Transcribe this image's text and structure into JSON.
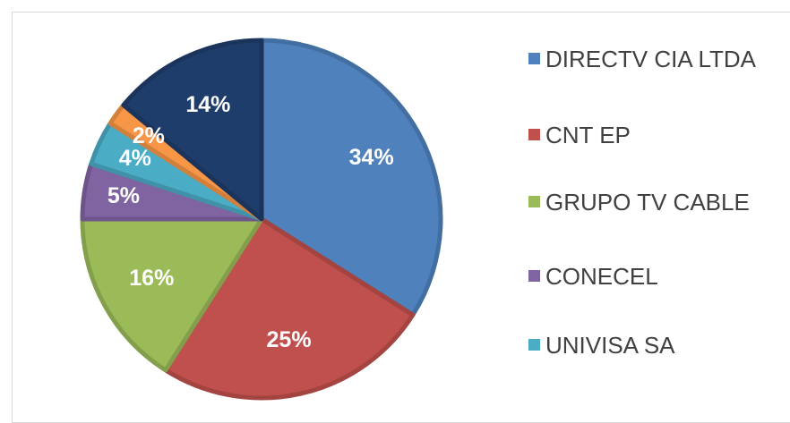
{
  "chart_data": {
    "type": "pie",
    "categories": [
      "DIRECTV CIA LTDA",
      "CNT EP",
      "GRUPO TV CABLE",
      "CONECEL",
      "UNIVISA SA",
      null,
      null
    ],
    "values": [
      34,
      25,
      16,
      5,
      4,
      2,
      14
    ],
    "value_labels": [
      "34%",
      "25%",
      "16%",
      "5%",
      "4%",
      "2%",
      "14%"
    ],
    "colors": [
      "#4f81bd",
      "#c0504d",
      "#9bbb59",
      "#8064a2",
      "#4bacc6",
      "#f79646",
      "#1f3d6b"
    ]
  }
}
